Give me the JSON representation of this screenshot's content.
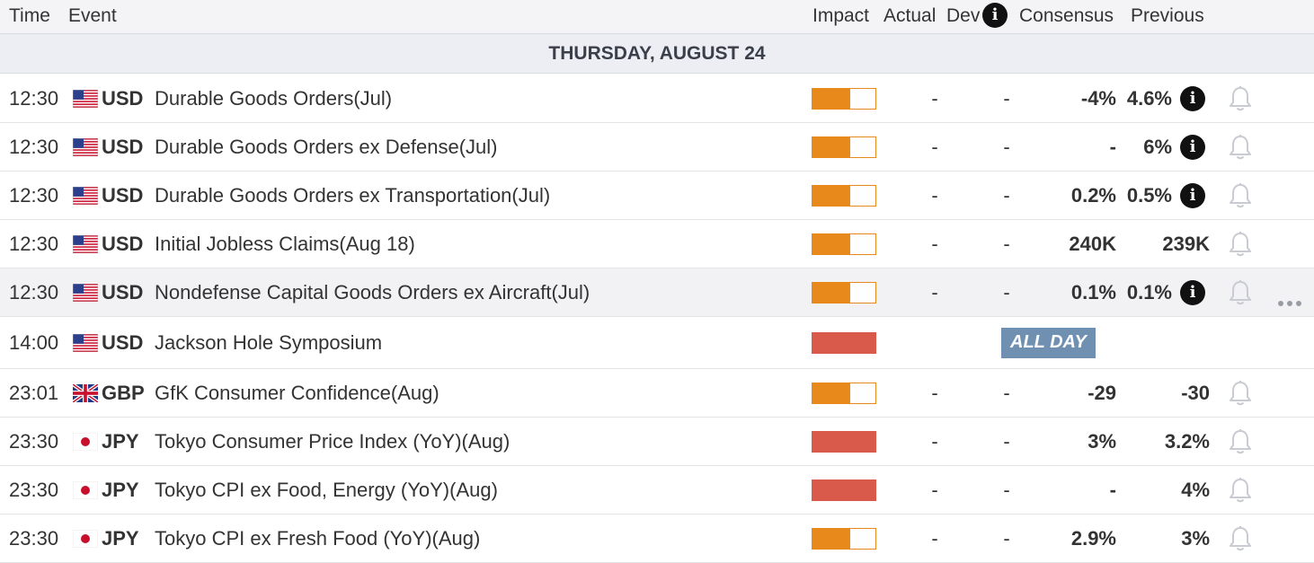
{
  "header": {
    "time": "Time",
    "event": "Event",
    "impact": "Impact",
    "actual": "Actual",
    "dev": "Dev",
    "consensus": "Consensus",
    "previous": "Previous",
    "info_glyph": "i"
  },
  "day_label": "THURSDAY, AUGUST 24",
  "colors": {
    "impact_medium": "#e8891c",
    "impact_high": "#d95a4a",
    "all_day_badge": "#6f90b0"
  },
  "rows": [
    {
      "time": "12:30",
      "currency": "USD",
      "flag": "us-flag-icon",
      "event": "Durable Goods Orders(Jul)",
      "impact": "medium",
      "impact_level": 0.6,
      "actual": "-",
      "dev": "-",
      "consensus": "-4%",
      "previous": "4.6%",
      "info": "i"
    },
    {
      "time": "12:30",
      "currency": "USD",
      "flag": "us-flag-icon",
      "event": "Durable Goods Orders ex Defense(Jul)",
      "impact": "medium",
      "impact_level": 0.6,
      "actual": "-",
      "dev": "-",
      "consensus": "-",
      "previous": "6%",
      "info": "i"
    },
    {
      "time": "12:30",
      "currency": "USD",
      "flag": "us-flag-icon",
      "event": "Durable Goods Orders ex Transportation(Jul)",
      "impact": "medium",
      "impact_level": 0.6,
      "actual": "-",
      "dev": "-",
      "consensus": "0.2%",
      "previous": "0.5%",
      "info": "i"
    },
    {
      "time": "12:30",
      "currency": "USD",
      "flag": "us-flag-icon",
      "event": "Initial Jobless Claims(Aug 18)",
      "impact": "medium",
      "impact_level": 0.6,
      "actual": "-",
      "dev": "-",
      "consensus": "240K",
      "previous": "239K",
      "info": ""
    },
    {
      "time": "12:30",
      "currency": "USD",
      "flag": "us-flag-icon",
      "event": "Nondefense Capital Goods Orders ex Aircraft(Jul)",
      "impact": "medium",
      "impact_level": 0.6,
      "actual": "-",
      "dev": "-",
      "consensus": "0.1%",
      "previous": "0.1%",
      "info": "i",
      "highlighted": true
    },
    {
      "time": "14:00",
      "currency": "USD",
      "flag": "us-flag-icon",
      "event": "Jackson Hole Symposium",
      "impact": "high",
      "impact_level": 1.0,
      "all_day": "ALL DAY"
    },
    {
      "time": "23:01",
      "currency": "GBP",
      "flag": "uk-flag-icon",
      "event": "GfK Consumer Confidence(Aug)",
      "impact": "medium",
      "impact_level": 0.6,
      "actual": "-",
      "dev": "-",
      "consensus": "-29",
      "previous": "-30",
      "info": ""
    },
    {
      "time": "23:30",
      "currency": "JPY",
      "flag": "jp-flag-icon",
      "event": "Tokyo Consumer Price Index (YoY)(Aug)",
      "impact": "high",
      "impact_level": 1.0,
      "actual": "-",
      "dev": "-",
      "consensus": "3%",
      "previous": "3.2%",
      "info": ""
    },
    {
      "time": "23:30",
      "currency": "JPY",
      "flag": "jp-flag-icon",
      "event": "Tokyo CPI ex Food, Energy (YoY)(Aug)",
      "impact": "high",
      "impact_level": 1.0,
      "actual": "-",
      "dev": "-",
      "consensus": "-",
      "previous": "4%",
      "info": ""
    },
    {
      "time": "23:30",
      "currency": "JPY",
      "flag": "jp-flag-icon",
      "event": "Tokyo CPI ex Fresh Food (YoY)(Aug)",
      "impact": "medium",
      "impact_level": 0.6,
      "actual": "-",
      "dev": "-",
      "consensus": "2.9%",
      "previous": "3%",
      "info": ""
    }
  ],
  "more_glyph": "•••"
}
